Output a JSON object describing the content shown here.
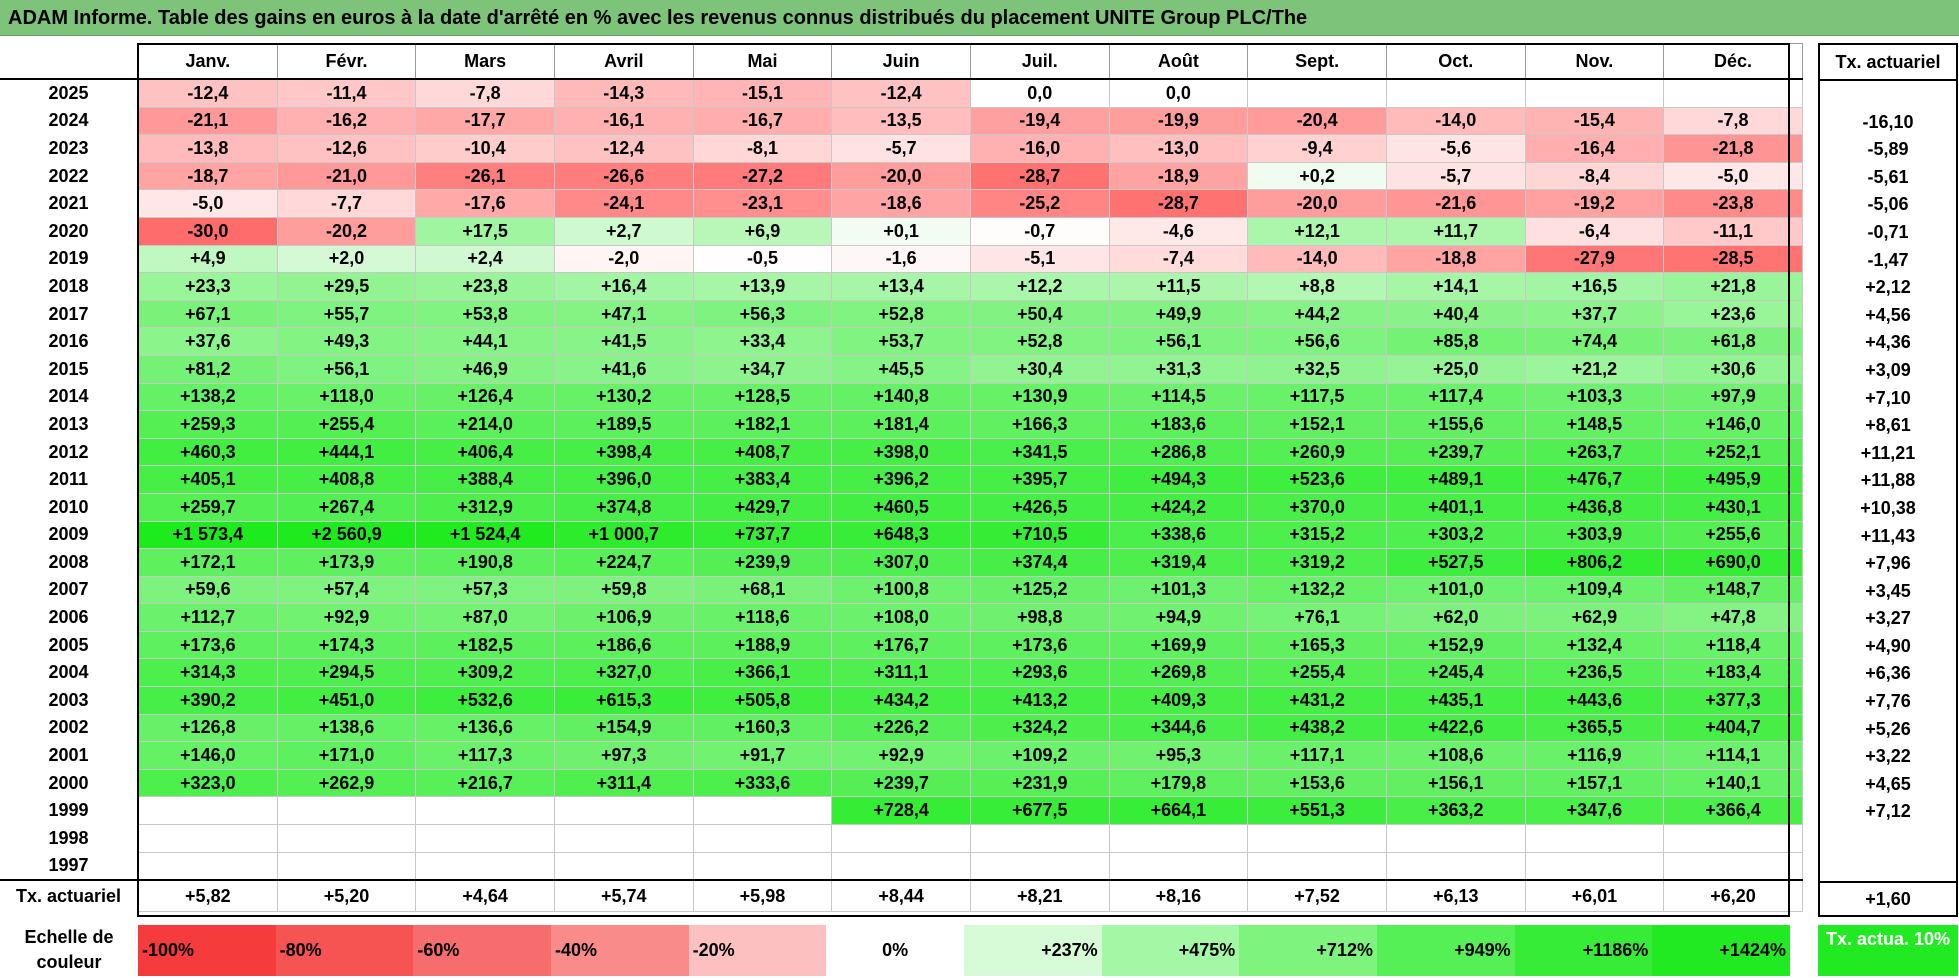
{
  "title": "ADAM Informe. Table des gains en euros à la date d'arrêté en % avec les revenus connus distribués du placement UNITE Group PLC/The",
  "months": [
    "Janv.",
    "Févr.",
    "Mars",
    "Avril",
    "Mai",
    "Juin",
    "Juil.",
    "Août",
    "Sept.",
    "Oct.",
    "Nov.",
    "Déc."
  ],
  "actu_header": "Tx. actuariel",
  "rows": [
    {
      "year": "2025",
      "values": [
        "-12,4",
        "-11,4",
        "-7,8",
        "-14,3",
        "-15,1",
        "-12,4",
        "0,0",
        "0,0",
        "",
        "",
        "",
        ""
      ],
      "actu": ""
    },
    {
      "year": "2024",
      "values": [
        "-21,1",
        "-16,2",
        "-17,7",
        "-16,1",
        "-16,7",
        "-13,5",
        "-19,4",
        "-19,9",
        "-20,4",
        "-14,0",
        "-15,4",
        "-7,8"
      ],
      "actu": "-16,10"
    },
    {
      "year": "2023",
      "values": [
        "-13,8",
        "-12,6",
        "-10,4",
        "-12,4",
        "-8,1",
        "-5,7",
        "-16,0",
        "-13,0",
        "-9,4",
        "-5,6",
        "-16,4",
        "-21,8"
      ],
      "actu": "-5,89"
    },
    {
      "year": "2022",
      "values": [
        "-18,7",
        "-21,0",
        "-26,1",
        "-26,6",
        "-27,2",
        "-20,0",
        "-28,7",
        "-18,9",
        "+0,2",
        "-5,7",
        "-8,4",
        "-5,0"
      ],
      "actu": "-5,61"
    },
    {
      "year": "2021",
      "values": [
        "-5,0",
        "-7,7",
        "-17,6",
        "-24,1",
        "-23,1",
        "-18,6",
        "-25,2",
        "-28,7",
        "-20,0",
        "-21,6",
        "-19,2",
        "-23,8"
      ],
      "actu": "-5,06"
    },
    {
      "year": "2020",
      "values": [
        "-30,0",
        "-20,2",
        "+17,5",
        "+2,7",
        "+6,9",
        "+0,1",
        "-0,7",
        "-4,6",
        "+12,1",
        "+11,7",
        "-6,4",
        "-11,1"
      ],
      "actu": "-0,71"
    },
    {
      "year": "2019",
      "values": [
        "+4,9",
        "+2,0",
        "+2,4",
        "-2,0",
        "-0,5",
        "-1,6",
        "-5,1",
        "-7,4",
        "-14,0",
        "-18,8",
        "-27,9",
        "-28,5"
      ],
      "actu": "-1,47"
    },
    {
      "year": "2018",
      "values": [
        "+23,3",
        "+29,5",
        "+23,8",
        "+16,4",
        "+13,9",
        "+13,4",
        "+12,2",
        "+11,5",
        "+8,8",
        "+14,1",
        "+16,5",
        "+21,8"
      ],
      "actu": "+2,12"
    },
    {
      "year": "2017",
      "values": [
        "+67,1",
        "+55,7",
        "+53,8",
        "+47,1",
        "+56,3",
        "+52,8",
        "+50,4",
        "+49,9",
        "+44,2",
        "+40,4",
        "+37,7",
        "+23,6"
      ],
      "actu": "+4,56"
    },
    {
      "year": "2016",
      "values": [
        "+37,6",
        "+49,3",
        "+44,1",
        "+41,5",
        "+33,4",
        "+53,7",
        "+52,8",
        "+56,1",
        "+56,6",
        "+85,8",
        "+74,4",
        "+61,8"
      ],
      "actu": "+4,36"
    },
    {
      "year": "2015",
      "values": [
        "+81,2",
        "+56,1",
        "+46,9",
        "+41,6",
        "+34,7",
        "+45,5",
        "+30,4",
        "+31,3",
        "+32,5",
        "+25,0",
        "+21,2",
        "+30,6"
      ],
      "actu": "+3,09"
    },
    {
      "year": "2014",
      "values": [
        "+138,2",
        "+118,0",
        "+126,4",
        "+130,2",
        "+128,5",
        "+140,8",
        "+130,9",
        "+114,5",
        "+117,5",
        "+117,4",
        "+103,3",
        "+97,9"
      ],
      "actu": "+7,10"
    },
    {
      "year": "2013",
      "values": [
        "+259,3",
        "+255,4",
        "+214,0",
        "+189,5",
        "+182,1",
        "+181,4",
        "+166,3",
        "+183,6",
        "+152,1",
        "+155,6",
        "+148,5",
        "+146,0"
      ],
      "actu": "+8,61"
    },
    {
      "year": "2012",
      "values": [
        "+460,3",
        "+444,1",
        "+406,4",
        "+398,4",
        "+408,7",
        "+398,0",
        "+341,5",
        "+286,8",
        "+260,9",
        "+239,7",
        "+263,7",
        "+252,1"
      ],
      "actu": "+11,21"
    },
    {
      "year": "2011",
      "values": [
        "+405,1",
        "+408,8",
        "+388,4",
        "+396,0",
        "+383,4",
        "+396,2",
        "+395,7",
        "+494,3",
        "+523,6",
        "+489,1",
        "+476,7",
        "+495,9"
      ],
      "actu": "+11,88"
    },
    {
      "year": "2010",
      "values": [
        "+259,7",
        "+267,4",
        "+312,9",
        "+374,8",
        "+429,7",
        "+460,5",
        "+426,5",
        "+424,2",
        "+370,0",
        "+401,1",
        "+436,8",
        "+430,1"
      ],
      "actu": "+10,38"
    },
    {
      "year": "2009",
      "values": [
        "+1 573,4",
        "+2 560,9",
        "+1 524,4",
        "+1 000,7",
        "+737,7",
        "+648,3",
        "+710,5",
        "+338,6",
        "+315,2",
        "+303,2",
        "+303,9",
        "+255,6"
      ],
      "actu": "+11,43"
    },
    {
      "year": "2008",
      "values": [
        "+172,1",
        "+173,9",
        "+190,8",
        "+224,7",
        "+239,9",
        "+307,0",
        "+374,4",
        "+319,4",
        "+319,2",
        "+527,5",
        "+806,2",
        "+690,0"
      ],
      "actu": "+7,96"
    },
    {
      "year": "2007",
      "values": [
        "+59,6",
        "+57,4",
        "+57,3",
        "+59,8",
        "+68,1",
        "+100,8",
        "+125,2",
        "+101,3",
        "+132,2",
        "+101,0",
        "+109,4",
        "+148,7"
      ],
      "actu": "+3,45"
    },
    {
      "year": "2006",
      "values": [
        "+112,7",
        "+92,9",
        "+87,0",
        "+106,9",
        "+118,6",
        "+108,0",
        "+98,8",
        "+94,9",
        "+76,1",
        "+62,0",
        "+62,9",
        "+47,8"
      ],
      "actu": "+3,27"
    },
    {
      "year": "2005",
      "values": [
        "+173,6",
        "+174,3",
        "+182,5",
        "+186,6",
        "+188,9",
        "+176,7",
        "+173,6",
        "+169,9",
        "+165,3",
        "+152,9",
        "+132,4",
        "+118,4"
      ],
      "actu": "+4,90"
    },
    {
      "year": "2004",
      "values": [
        "+314,3",
        "+294,5",
        "+309,2",
        "+327,0",
        "+366,1",
        "+311,1",
        "+293,6",
        "+269,8",
        "+255,4",
        "+245,4",
        "+236,5",
        "+183,4"
      ],
      "actu": "+6,36"
    },
    {
      "year": "2003",
      "values": [
        "+390,2",
        "+451,0",
        "+532,6",
        "+615,3",
        "+505,8",
        "+434,2",
        "+413,2",
        "+409,3",
        "+431,2",
        "+435,1",
        "+443,6",
        "+377,3"
      ],
      "actu": "+7,76"
    },
    {
      "year": "2002",
      "values": [
        "+126,8",
        "+138,6",
        "+136,6",
        "+154,9",
        "+160,3",
        "+226,2",
        "+324,2",
        "+344,6",
        "+438,2",
        "+422,6",
        "+365,5",
        "+404,7"
      ],
      "actu": "+5,26"
    },
    {
      "year": "2001",
      "values": [
        "+146,0",
        "+171,0",
        "+117,3",
        "+97,3",
        "+91,7",
        "+92,9",
        "+109,2",
        "+95,3",
        "+117,1",
        "+108,6",
        "+116,9",
        "+114,1"
      ],
      "actu": "+3,22"
    },
    {
      "year": "2000",
      "values": [
        "+323,0",
        "+262,9",
        "+216,7",
        "+311,4",
        "+333,6",
        "+239,7",
        "+231,9",
        "+179,8",
        "+153,6",
        "+156,1",
        "+157,1",
        "+140,1"
      ],
      "actu": "+4,65"
    },
    {
      "year": "1999",
      "values": [
        "",
        "",
        "",
        "",
        "",
        "+728,4",
        "+677,5",
        "+664,1",
        "+551,3",
        "+363,2",
        "+347,6",
        "+366,4"
      ],
      "actu": "+7,12"
    },
    {
      "year": "1998",
      "values": [
        "",
        "",
        "",
        "",
        "",
        "",
        "",
        "",
        "",
        "",
        "",
        ""
      ],
      "actu": ""
    },
    {
      "year": "1997",
      "values": [
        "",
        "",
        "",
        "",
        "",
        "",
        "",
        "",
        "",
        "",
        "",
        ""
      ],
      "actu": ""
    }
  ],
  "footer": {
    "label": "Tx. actuariel",
    "values": [
      "+5,82",
      "+5,20",
      "+4,64",
      "+5,74",
      "+5,98",
      "+8,44",
      "+8,21",
      "+8,16",
      "+7,52",
      "+6,13",
      "+6,01",
      "+6,20"
    ],
    "actu": "+1,60"
  },
  "legend": {
    "label": "Echelle de couleur",
    "steps": [
      "-100%",
      "-80%",
      "-60%",
      "-40%",
      "-20%",
      "0%",
      "+237%",
      "+475%",
      "+712%",
      "+949%",
      "+1186%",
      "+1424%"
    ],
    "colors": [
      "#f53b3b",
      "#f65353",
      "#f76c6c",
      "#fa8b8b",
      "#fcc0c0",
      "#ffffff",
      "#d6fbd6",
      "#a4f7a4",
      "#7ef47e",
      "#55f055",
      "#36ec36",
      "#22ea22"
    ],
    "actu_box": "Tx. actua. 10%",
    "actu_color": "#22ea22"
  }
}
